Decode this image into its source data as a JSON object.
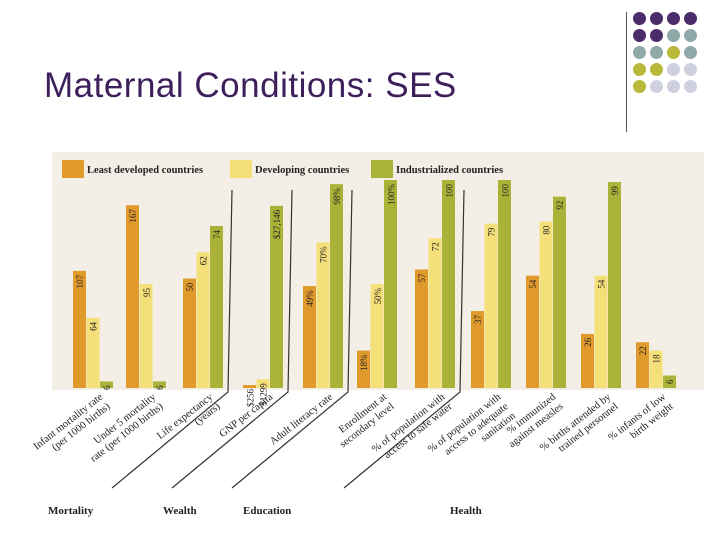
{
  "slide": {
    "title": "Maternal Conditions: SES"
  },
  "decoration": {
    "dot_colors": [
      "#4b2d6b",
      "#8fa8a8",
      "#b8b83a",
      "#cfd0e0"
    ],
    "dot_grid": [
      [
        0,
        0,
        0,
        0
      ],
      [
        0,
        0,
        1,
        1
      ],
      [
        1,
        1,
        2,
        1
      ],
      [
        2,
        2,
        3,
        3
      ],
      [
        2,
        3,
        3,
        3
      ]
    ]
  },
  "colors": {
    "least": "#e09a2c",
    "developing": "#f5df78",
    "industrialized": "#aab338",
    "background": "#f4efe6",
    "label_text": "#222222"
  },
  "chart_data": {
    "type": "bar",
    "title": "",
    "legend_position": "top",
    "series": [
      {
        "name": "Least developed countries",
        "values": [
          107,
          167,
          50,
          256,
          49,
          18,
          57,
          37,
          54,
          26,
          22
        ]
      },
      {
        "name": "Developing countries",
        "values": [
          64,
          95,
          62,
          1299,
          70,
          50,
          72,
          79,
          80,
          54,
          18
        ]
      },
      {
        "name": "Industrialized countries",
        "values": [
          6,
          6,
          74,
          27146,
          98,
          100,
          100,
          100,
          92,
          99,
          6
        ]
      }
    ],
    "data_labels": [
      [
        "107",
        "64",
        "6"
      ],
      [
        "167",
        "95",
        "6"
      ],
      [
        "50",
        "62",
        "74"
      ],
      [
        "$256",
        "$1299",
        "$27,146"
      ],
      [
        "49%",
        "70%",
        "98%"
      ],
      [
        "18%",
        "50%",
        "100%"
      ],
      [
        "57",
        "72",
        "100"
      ],
      [
        "37",
        "79",
        "100"
      ],
      [
        "54",
        "80",
        "92"
      ],
      [
        "26",
        "54",
        "99"
      ],
      [
        "22",
        "18",
        "6"
      ]
    ],
    "categories": [
      {
        "name": "Infant mortality rate (per 1000 births)",
        "lines": [
          "Infant mortality rate",
          "(per 1000 births)"
        ]
      },
      {
        "name": "Under 5 mortality rate (per 1000 births)",
        "lines": [
          "Under 5 mortality",
          "rate (per 1000 births)"
        ]
      },
      {
        "name": "Life expectancy (years)",
        "lines": [
          "Life expectancy",
          "(years)"
        ]
      },
      {
        "name": "GNP per capita",
        "lines": [
          "GNP per capita"
        ]
      },
      {
        "name": "Adult literacy rate",
        "lines": [
          "Adult literacy rate"
        ]
      },
      {
        "name": "Enrollment at secondary level",
        "lines": [
          "Enrollment at",
          "secondary level"
        ]
      },
      {
        "name": "% of population with access to safe water",
        "lines": [
          "% of population with",
          "access to safe water"
        ]
      },
      {
        "name": "% of population with access to adequate sanitation",
        "lines": [
          "% of population with",
          "access to adequate",
          "sanitation"
        ]
      },
      {
        "name": "% immunized against measles",
        "lines": [
          "% immunized",
          "against measles"
        ]
      },
      {
        "name": "% births attended by trained personnel",
        "lines": [
          "% births attended by",
          "trained personnel"
        ]
      },
      {
        "name": "% infants of low birth weight",
        "lines": [
          "% infants of low",
          "birth weight"
        ]
      }
    ],
    "groups": [
      {
        "label": "Mortality",
        "categories": [
          0,
          1
        ]
      },
      {
        "label": "Wealth",
        "categories": [
          2,
          3
        ]
      },
      {
        "label": "Education",
        "categories": [
          4,
          5
        ]
      },
      {
        "label": "Health",
        "categories": [
          6,
          7,
          8,
          9,
          10
        ]
      }
    ]
  }
}
